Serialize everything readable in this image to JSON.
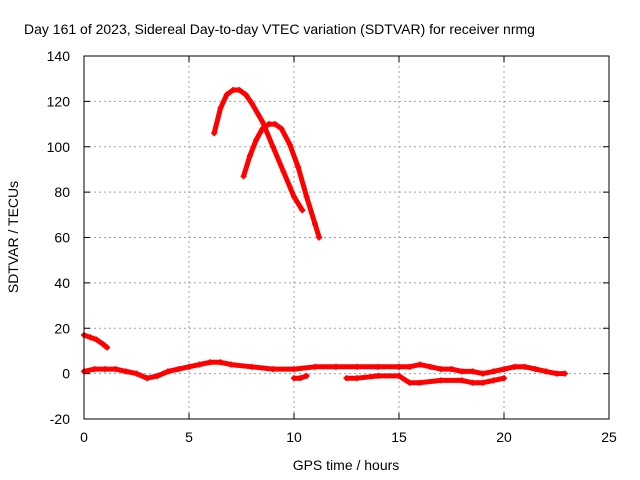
{
  "chart_data": {
    "type": "scatter",
    "title": "Day 161 of 2023, Sidereal Day-to-day VTEC variation (SDTVAR) for receiver nrmg",
    "xlabel": "GPS time / hours",
    "ylabel": "SDTVAR / TECUs",
    "xlim": [
      0,
      25
    ],
    "ylim": [
      -20,
      140
    ],
    "xticks": [
      0,
      5,
      10,
      15,
      20,
      25
    ],
    "yticks": [
      -20,
      0,
      20,
      40,
      60,
      80,
      100,
      120,
      140
    ],
    "grid": true,
    "marker": "+",
    "color": "#ff0000",
    "series": [
      {
        "name": "arc-1",
        "x": [
          6.2,
          6.5,
          6.8,
          7.1,
          7.4,
          7.7,
          8.0,
          8.5,
          9.0,
          9.5,
          10.0,
          10.4
        ],
        "y": [
          106,
          117,
          123,
          125,
          125,
          123,
          119,
          111,
          100,
          89,
          78,
          72
        ]
      },
      {
        "name": "arc-2",
        "x": [
          7.6,
          7.9,
          8.2,
          8.5,
          8.8,
          9.1,
          9.4,
          9.8,
          10.2,
          10.6,
          11.0,
          11.2
        ],
        "y": [
          87,
          96,
          103,
          108,
          110,
          110,
          108,
          101,
          91,
          78,
          66,
          60
        ]
      },
      {
        "name": "short-arc",
        "x": [
          0.0,
          0.3,
          0.6,
          0.9,
          1.1
        ],
        "y": [
          17,
          16,
          15,
          13,
          11.5
        ]
      },
      {
        "name": "baseline-1",
        "x": [
          0.0,
          0.5,
          1.0,
          1.5,
          2.0,
          2.5,
          3.0,
          3.5,
          4.0,
          4.5,
          5.0,
          5.5,
          6.0,
          6.5,
          7.0,
          8.0,
          9.0,
          10.0,
          11.0,
          12.0,
          13.0,
          14.0,
          15.0
        ],
        "y": [
          1,
          2,
          2,
          2,
          1,
          0,
          -2,
          -1,
          1,
          2,
          3,
          4,
          5,
          5,
          4,
          3,
          2,
          2,
          3,
          3,
          3,
          3,
          3
        ]
      },
      {
        "name": "baseline-2",
        "x": [
          15.0,
          15.5,
          16.0,
          16.5,
          17.0,
          17.5,
          18.0,
          18.5,
          19.0,
          19.5,
          20.0,
          20.5,
          21.0,
          21.5,
          22.0,
          22.5,
          22.9
        ],
        "y": [
          3,
          3,
          4,
          3,
          2,
          2,
          1,
          1,
          0,
          1,
          2,
          3,
          3,
          2,
          1,
          0,
          0
        ]
      },
      {
        "name": "lower-band",
        "x": [
          12.5,
          13.0,
          14.0,
          15.0,
          15.5,
          16.0,
          17.0,
          18.0,
          18.5,
          19.0,
          19.5,
          20.0
        ],
        "y": [
          -2,
          -2,
          -1,
          -1,
          -4,
          -4,
          -3,
          -3,
          -4,
          -4,
          -3,
          -2
        ]
      },
      {
        "name": "segment",
        "x": [
          10.0,
          10.3,
          10.6
        ],
        "y": [
          -2,
          -2,
          -1
        ]
      }
    ]
  }
}
